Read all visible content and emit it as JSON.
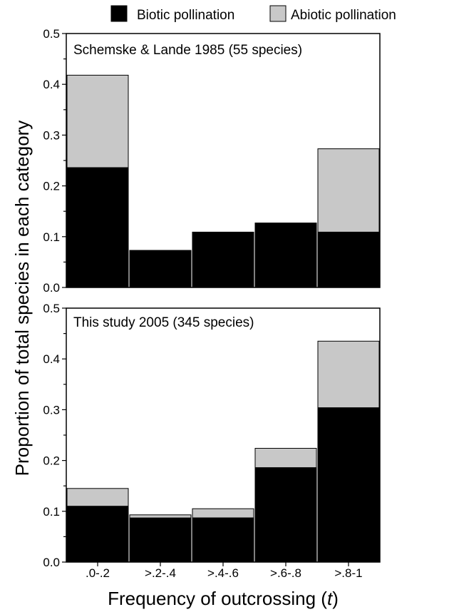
{
  "legend": {
    "items": [
      {
        "label": "Biotic pollination",
        "color": "#000000"
      },
      {
        "label": "Abiotic pollination",
        "color": "#c8c8c8"
      }
    ]
  },
  "chart_data": {
    "type": "bar",
    "stacked": true,
    "xlabel": "Frequency of outcrossing (t)",
    "xlabel_main": "Frequency of outcrossing (",
    "xlabel_var": "t",
    "xlabel_end": ")",
    "ylabel": "Proportion of total species in each category",
    "categories": [
      ".0-.2",
      ">.2-.4",
      ">.4-.6",
      ">.6-.8",
      ">.8-1"
    ],
    "ylim": [
      0,
      0.5
    ],
    "yticks": [
      "0.0",
      "0.1",
      "0.2",
      "0.3",
      "0.4",
      "0.5"
    ],
    "panels": [
      {
        "label": "Schemske & Lande 1985 (55 species)",
        "series": [
          {
            "name": "Biotic pollination",
            "values": [
              0.236,
              0.073,
              0.109,
              0.127,
              0.109
            ]
          },
          {
            "name": "Abiotic pollination",
            "values": [
              0.182,
              0.0,
              0.0,
              0.0,
              0.164
            ]
          }
        ]
      },
      {
        "label": "This study 2005 (345 species)",
        "series": [
          {
            "name": "Biotic pollination",
            "values": [
              0.11,
              0.087,
              0.087,
              0.186,
              0.304
            ]
          },
          {
            "name": "Abiotic pollination",
            "values": [
              0.035,
              0.006,
              0.018,
              0.038,
              0.131
            ]
          }
        ]
      }
    ]
  }
}
